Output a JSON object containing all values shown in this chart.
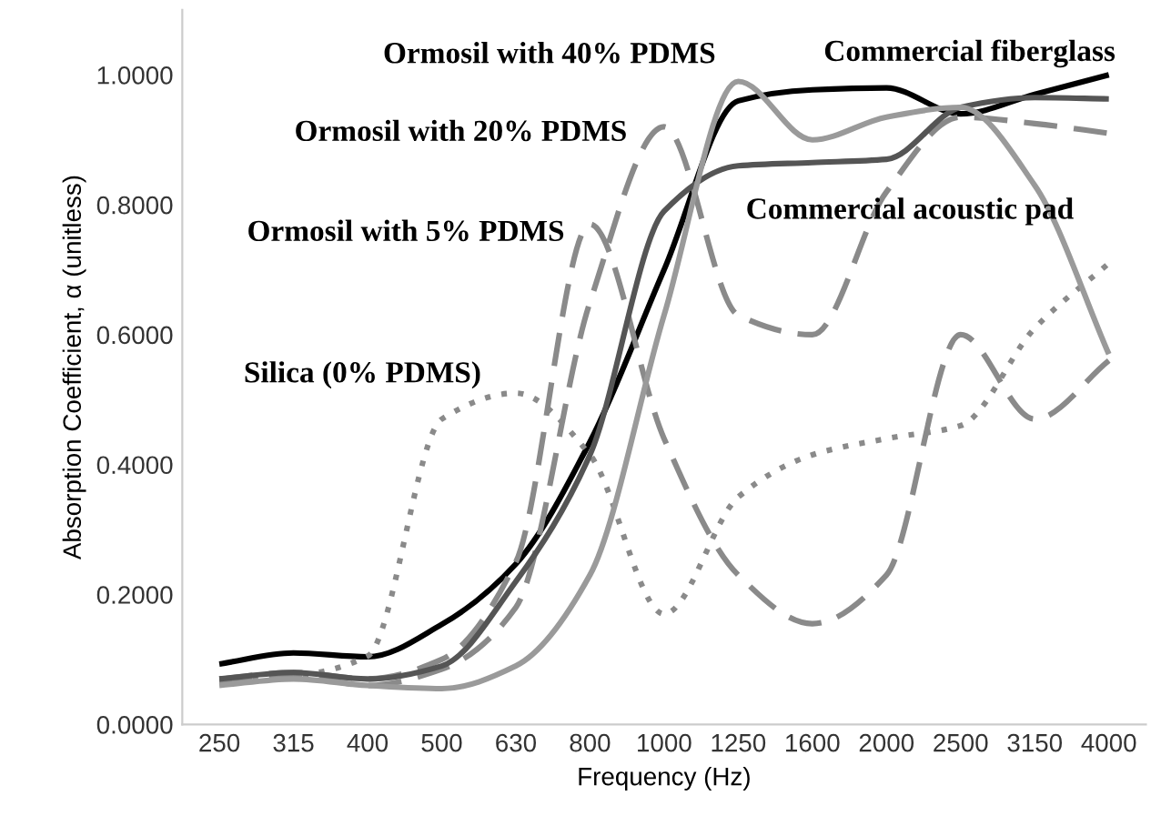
{
  "chart_data": {
    "type": "line",
    "xlabel": "Frequency (Hz)",
    "ylabel": "Absorption Coefficient, α (unitless)",
    "categories": [
      "250",
      "315",
      "400",
      "500",
      "630",
      "800",
      "1000",
      "1250",
      "1600",
      "2000",
      "2500",
      "3150",
      "4000"
    ],
    "series": [
      {
        "color": "#000000",
        "line_style": "solid",
        "values": [
          0.093,
          0.11,
          0.104,
          0.154,
          0.247,
          0.435,
          0.7,
          0.96,
          0.977,
          0.98,
          0.94,
          0.97,
          1.0
        ]
      },
      {
        "color": "#8a8a8a",
        "line_style": "dashed",
        "values": [
          0.065,
          0.075,
          0.06,
          0.085,
          0.18,
          0.65,
          0.92,
          0.63,
          0.6,
          0.82,
          0.935,
          0.925,
          0.91
        ]
      },
      {
        "color": "#8a8a8a",
        "line_style": "dashed",
        "values": [
          0.07,
          0.08,
          0.07,
          0.1,
          0.25,
          0.77,
          0.44,
          0.23,
          0.155,
          0.23,
          0.6,
          0.47,
          0.56
        ]
      },
      {
        "color": "#8a8a8a",
        "line_style": "dotted",
        "values": [
          0.07,
          0.075,
          0.105,
          0.47,
          0.51,
          0.415,
          0.17,
          0.35,
          0.415,
          0.44,
          0.46,
          0.61,
          0.71
        ]
      },
      {
        "color": "#555555",
        "line_style": "solid",
        "values": [
          0.07,
          0.08,
          0.07,
          0.09,
          0.22,
          0.415,
          0.79,
          0.86,
          0.865,
          0.87,
          0.95,
          0.965,
          0.963
        ]
      },
      {
        "color": "#9a9a9a",
        "line_style": "solid",
        "values": [
          0.06,
          0.07,
          0.06,
          0.055,
          0.09,
          0.23,
          0.63,
          0.99,
          0.9,
          0.935,
          0.95,
          0.83,
          0.57
        ]
      }
    ],
    "ylim": [
      0,
      1.1
    ],
    "yticks": [
      {
        "value": 0,
        "label": "0.0000"
      },
      {
        "value": 0.2,
        "label": "0.2000"
      },
      {
        "value": 0.4,
        "label": "0.4000"
      },
      {
        "value": 0.6,
        "label": "0.6000"
      },
      {
        "value": 0.8,
        "label": "0.8000"
      },
      {
        "value": 1.0,
        "label": "1.0000"
      }
    ],
    "grid": false,
    "legend": false,
    "marker": "none",
    "annotations": [
      "Ormosil with 40% PDMS",
      "Ormosil with 20% PDMS",
      "Ormosil with 5% PDMS",
      "Silica (0% PDMS)",
      "Commercial acoustic pad",
      "Commercial fiberglass"
    ]
  }
}
